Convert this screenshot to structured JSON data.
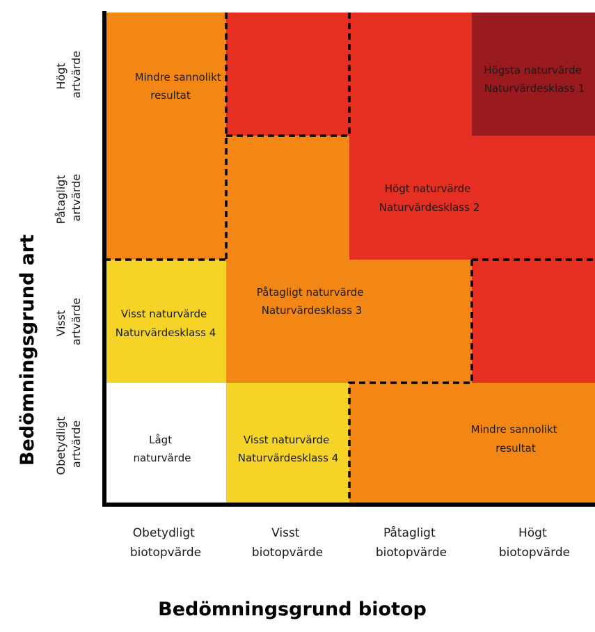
{
  "colors": {
    "low": "#ffffff",
    "class4": "#f5d327",
    "class3": "#f28715",
    "class2": "#e52f22",
    "class1": "#9a1b1f",
    "axis": "#000000",
    "divider": "#000000"
  },
  "axes": {
    "y_title": "Bedömningsgrund art",
    "x_title": "Bedömningsgrund biotop",
    "rows": [
      {
        "line1": "Högt",
        "line2": "artvärde"
      },
      {
        "line1": "Påtagligt",
        "line2": "artvärde"
      },
      {
        "line1": "Visst",
        "line2": "artvärde"
      },
      {
        "line1": "Obetydligt",
        "line2": "artvärde"
      }
    ],
    "columns": [
      {
        "line1": "Obetydligt",
        "line2": "biotopvärde"
      },
      {
        "line1": "Visst",
        "line2": "biotopvärde"
      },
      {
        "line1": "Påtagligt",
        "line2": "biotopvärde"
      },
      {
        "line1": "Högt",
        "line2": "biotopvärde"
      }
    ]
  },
  "labels": {
    "less_likely_top": {
      "line1": "Mindre sannolikt",
      "line2": "resultat"
    },
    "highest": {
      "line1": "Högsta naturvärde",
      "line2": "Naturvärdesklass 1"
    },
    "high": {
      "line1": "Högt naturvärde",
      "line2": "Naturvärdesklass 2"
    },
    "notable": {
      "line1": "Påtagligt naturvärde",
      "line2": "Naturvärdesklass 3"
    },
    "some_left": {
      "line1": "Visst naturvärde",
      "line2": "Naturvärdesklass 4"
    },
    "low": {
      "line1": "Lågt",
      "line2": "naturvärde"
    },
    "some_bottom": {
      "line1": "Visst naturvärde",
      "line2": "Naturvärdesklass 4"
    },
    "less_likely_bottom": {
      "line1": "Mindre sannolikt",
      "line2": "resultat"
    }
  }
}
